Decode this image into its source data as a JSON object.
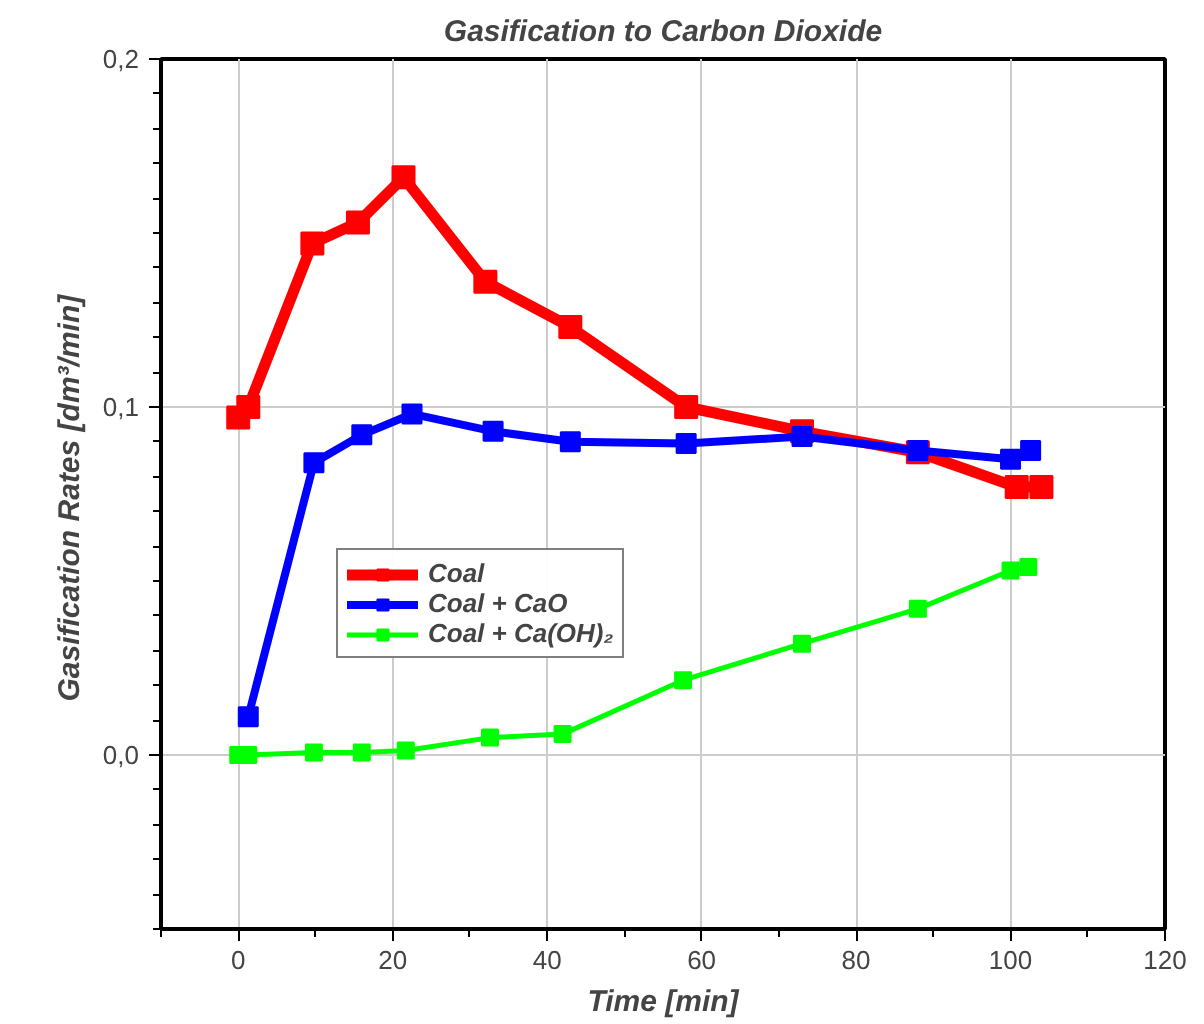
{
  "chart_data": {
    "type": "line",
    "title": "Gasification to Carbon Dioxide",
    "xlabel": "Time [min]",
    "ylabel": "Gasification Rates  [dm³/min]",
    "series": [
      {
        "name": "Coal",
        "color": "#ff0000",
        "x": [
          0,
          1.3,
          9.6,
          15.5,
          21.4,
          32,
          43,
          58,
          73,
          88,
          100.8,
          104
        ],
        "values": [
          0.097,
          0.1,
          0.147,
          0.153,
          0.166,
          0.136,
          0.123,
          0.1,
          0.093,
          0.087,
          0.077,
          0.077
        ]
      },
      {
        "name": "Coal + CaO",
        "color": "#0000ff",
        "x": [
          1.3,
          9.8,
          16,
          22.5,
          33,
          43,
          58,
          73,
          88,
          100,
          102.6
        ],
        "values": [
          0.011,
          0.084,
          0.092,
          0.098,
          0.093,
          0.09,
          0.0895,
          0.0915,
          0.0875,
          0.085,
          0.0875
        ]
      },
      {
        "name": "Coal + Ca(OH)₂",
        "color": "#00ff00",
        "x": [
          0,
          1.3,
          9.8,
          16,
          21.7,
          32.6,
          42,
          57.6,
          73,
          88,
          100,
          102.3
        ],
        "values": [
          0.0,
          0.0,
          0.0007,
          0.0007,
          0.0013,
          0.005,
          0.006,
          0.0215,
          0.032,
          0.042,
          0.053,
          0.054
        ]
      }
    ],
    "xlim": [
      -10,
      120
    ],
    "xticks": [
      0,
      20,
      40,
      60,
      80,
      100,
      120
    ],
    "ylim": [
      -0.05,
      0.2
    ],
    "yticks": [
      {
        "value": 0,
        "label": "0,0"
      },
      {
        "value": 0.1,
        "label": "0,1"
      },
      {
        "value": 0.2,
        "label": "0,2"
      }
    ],
    "grid": true,
    "legend": "center",
    "marker": "square",
    "line_style": "solid"
  }
}
